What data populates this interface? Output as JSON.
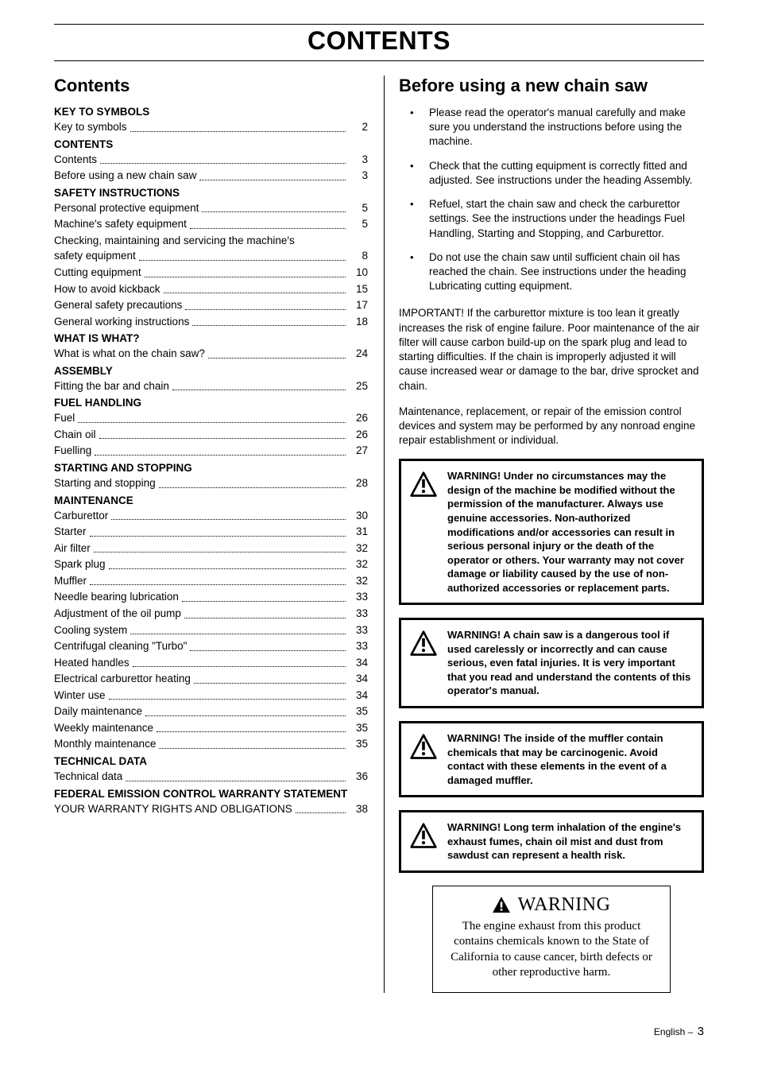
{
  "page_title": "CONTENTS",
  "left": {
    "heading": "Contents",
    "toc": [
      {
        "type": "heading",
        "text": "KEY TO SYMBOLS"
      },
      {
        "type": "entry",
        "label": "Key to symbols",
        "page": "2"
      },
      {
        "type": "heading",
        "text": "CONTENTS"
      },
      {
        "type": "entry",
        "label": "Contents",
        "page": "3"
      },
      {
        "type": "entry",
        "label": "Before using a new chain saw",
        "page": "3"
      },
      {
        "type": "heading",
        "text": "SAFETY INSTRUCTIONS"
      },
      {
        "type": "entry",
        "label": "Personal protective equipment",
        "page": "5"
      },
      {
        "type": "entry",
        "label": "Machine′s safety equipment",
        "page": "5"
      },
      {
        "type": "entry",
        "label": "Checking, maintaining and servicing the machine′s safety equipment",
        "page": "8",
        "wrap": true
      },
      {
        "type": "entry",
        "label": "Cutting equipment",
        "page": "10"
      },
      {
        "type": "entry",
        "label": "How to avoid kickback",
        "page": "15"
      },
      {
        "type": "entry",
        "label": "General safety precautions",
        "page": "17"
      },
      {
        "type": "entry",
        "label": "General working instructions",
        "page": "18"
      },
      {
        "type": "heading",
        "text": "WHAT IS WHAT?"
      },
      {
        "type": "entry",
        "label": "What is what on the chain saw?",
        "page": "24"
      },
      {
        "type": "heading",
        "text": "ASSEMBLY"
      },
      {
        "type": "entry",
        "label": "Fitting the bar and chain",
        "page": "25"
      },
      {
        "type": "heading",
        "text": "FUEL HANDLING"
      },
      {
        "type": "entry",
        "label": "Fuel",
        "page": "26"
      },
      {
        "type": "entry",
        "label": "Chain oil",
        "page": "26"
      },
      {
        "type": "entry",
        "label": "Fuelling",
        "page": "27"
      },
      {
        "type": "heading",
        "text": "STARTING AND STOPPING"
      },
      {
        "type": "entry",
        "label": "Starting and stopping",
        "page": "28"
      },
      {
        "type": "heading",
        "text": "MAINTENANCE"
      },
      {
        "type": "entry",
        "label": "Carburettor",
        "page": "30"
      },
      {
        "type": "entry",
        "label": "Starter",
        "page": "31"
      },
      {
        "type": "entry",
        "label": "Air filter",
        "page": "32"
      },
      {
        "type": "entry",
        "label": "Spark plug",
        "page": "32"
      },
      {
        "type": "entry",
        "label": "Muffler",
        "page": "32"
      },
      {
        "type": "entry",
        "label": "Needle bearing lubrication",
        "page": "33"
      },
      {
        "type": "entry",
        "label": "Adjustment of the oil pump",
        "page": "33"
      },
      {
        "type": "entry",
        "label": "Cooling system",
        "page": "33"
      },
      {
        "type": "entry",
        "label": "Centrifugal cleaning \"Turbo\"",
        "page": "33"
      },
      {
        "type": "entry",
        "label": "Heated handles",
        "page": "34"
      },
      {
        "type": "entry",
        "label": "Electrical carburettor heating",
        "page": "34"
      },
      {
        "type": "entry",
        "label": "Winter use",
        "page": "34"
      },
      {
        "type": "entry",
        "label": "Daily maintenance",
        "page": "35"
      },
      {
        "type": "entry",
        "label": "Weekly maintenance",
        "page": "35"
      },
      {
        "type": "entry",
        "label": "Monthly maintenance",
        "page": "35"
      },
      {
        "type": "heading",
        "text": "TECHNICAL DATA"
      },
      {
        "type": "entry",
        "label": "Technical data",
        "page": "36"
      },
      {
        "type": "heading",
        "text": "FEDERAL EMISSION CONTROL WARRANTY STATEMENT"
      },
      {
        "type": "entry",
        "label": "YOUR WARRANTY RIGHTS AND OBLIGATIONS",
        "page": "38"
      }
    ]
  },
  "right": {
    "heading": "Before using a new chain saw",
    "bullets": [
      "Please read the operator's manual carefully and make sure you understand the instructions before using the machine.",
      "Check that the cutting equipment is correctly fitted and adjusted. See instructions under the heading Assembly.",
      "Refuel, start the chain saw and check the carburettor settings. See the instructions under the headings Fuel Handling, Starting and Stopping, and Carburettor.",
      "Do not use the chain saw until sufficient chain oil has reached the chain. See instructions under the heading Lubricating cutting equipment."
    ],
    "important_para": "IMPORTANT! If the carburettor mixture is too lean it greatly increases the risk of engine failure. Poor maintenance of the air filter will cause carbon build-up on the spark plug and lead to starting difficulties. If the chain is improperly adjusted it will cause increased wear or damage to the bar, drive sprocket and chain.",
    "maintenance_para": "Maintenance, replacement, or repair of the emission control devices and system may be performed by any nonroad engine repair establishment or individual.",
    "warnings": [
      "WARNING! Under no circumstances may the design of the machine be modified without the permission of the manufacturer. Always use genuine accessories. Non-authorized modifications and/or accessories can result in serious personal injury or the death of the operator or others. Your warranty may not cover damage or liability caused by the use of non-authorized accessories or replacement parts.",
      "WARNING! A chain saw is a dangerous tool if used carelessly or incorrectly and can cause serious, even fatal injuries. It is very important that you read and understand the contents of this operator's manual.",
      "WARNING! The inside of the muffler contain chemicals that may be carcinogenic. Avoid contact with these elements in the event of a damaged muffler.",
      "WARNING! Long term inhalation of the engine's exhaust fumes, chain oil mist and dust from sawdust can represent a health risk."
    ],
    "ca_warning": {
      "title": "WARNING",
      "body": "The engine exhaust from this product contains chemicals known to the State of California to cause cancer, birth defects or other reproductive harm."
    }
  },
  "footer": {
    "lang": "English",
    "sep": "–",
    "page": "3"
  }
}
